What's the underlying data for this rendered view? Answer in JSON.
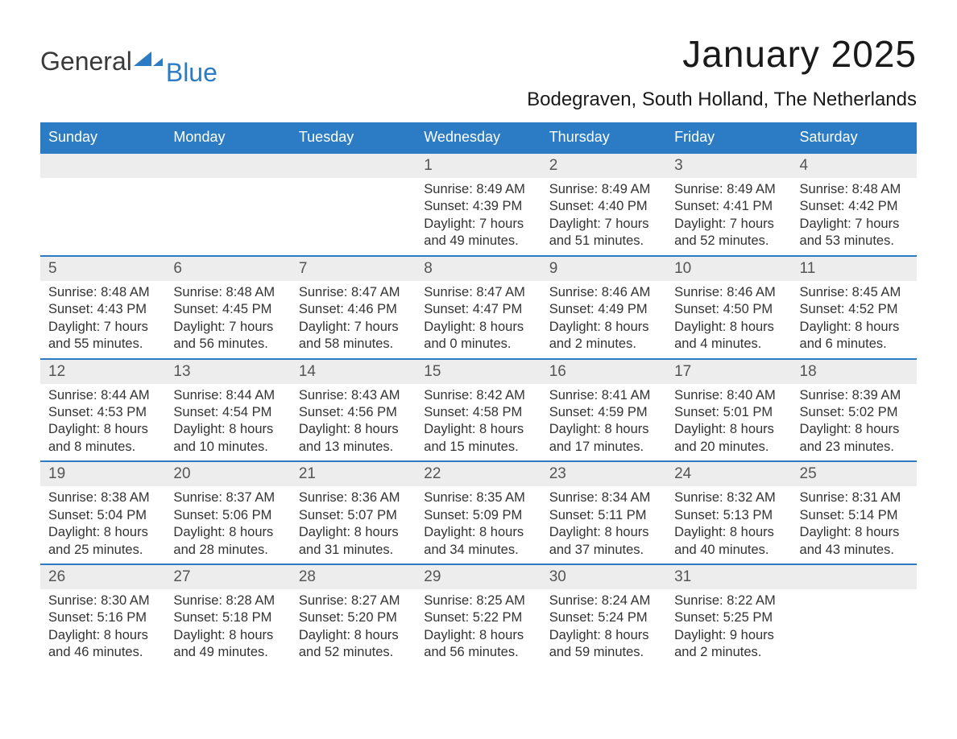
{
  "logo": {
    "text1": "General",
    "text2": "Blue",
    "shape_color": "#2b7cc4"
  },
  "title": "January 2025",
  "location": "Bodegraven, South Holland, The Netherlands",
  "colors": {
    "header_bg": "#2b7cc4",
    "header_text": "#ffffff",
    "daynum_bg": "#ededed",
    "daynum_border": "#2b7cc4",
    "body_text": "#333333",
    "page_bg": "#ffffff"
  },
  "fonts": {
    "title_size_pt": 34,
    "location_size_pt": 18,
    "dow_size_pt": 14,
    "daynum_size_pt": 14,
    "body_size_pt": 12
  },
  "days_of_week": [
    "Sunday",
    "Monday",
    "Tuesday",
    "Wednesday",
    "Thursday",
    "Friday",
    "Saturday"
  ],
  "weeks": [
    [
      {
        "num": "",
        "sunrise": "",
        "sunset": "",
        "daylight1": "",
        "daylight2": ""
      },
      {
        "num": "",
        "sunrise": "",
        "sunset": "",
        "daylight1": "",
        "daylight2": ""
      },
      {
        "num": "",
        "sunrise": "",
        "sunset": "",
        "daylight1": "",
        "daylight2": ""
      },
      {
        "num": "1",
        "sunrise": "Sunrise: 8:49 AM",
        "sunset": "Sunset: 4:39 PM",
        "daylight1": "Daylight: 7 hours",
        "daylight2": "and 49 minutes."
      },
      {
        "num": "2",
        "sunrise": "Sunrise: 8:49 AM",
        "sunset": "Sunset: 4:40 PM",
        "daylight1": "Daylight: 7 hours",
        "daylight2": "and 51 minutes."
      },
      {
        "num": "3",
        "sunrise": "Sunrise: 8:49 AM",
        "sunset": "Sunset: 4:41 PM",
        "daylight1": "Daylight: 7 hours",
        "daylight2": "and 52 minutes."
      },
      {
        "num": "4",
        "sunrise": "Sunrise: 8:48 AM",
        "sunset": "Sunset: 4:42 PM",
        "daylight1": "Daylight: 7 hours",
        "daylight2": "and 53 minutes."
      }
    ],
    [
      {
        "num": "5",
        "sunrise": "Sunrise: 8:48 AM",
        "sunset": "Sunset: 4:43 PM",
        "daylight1": "Daylight: 7 hours",
        "daylight2": "and 55 minutes."
      },
      {
        "num": "6",
        "sunrise": "Sunrise: 8:48 AM",
        "sunset": "Sunset: 4:45 PM",
        "daylight1": "Daylight: 7 hours",
        "daylight2": "and 56 minutes."
      },
      {
        "num": "7",
        "sunrise": "Sunrise: 8:47 AM",
        "sunset": "Sunset: 4:46 PM",
        "daylight1": "Daylight: 7 hours",
        "daylight2": "and 58 minutes."
      },
      {
        "num": "8",
        "sunrise": "Sunrise: 8:47 AM",
        "sunset": "Sunset: 4:47 PM",
        "daylight1": "Daylight: 8 hours",
        "daylight2": "and 0 minutes."
      },
      {
        "num": "9",
        "sunrise": "Sunrise: 8:46 AM",
        "sunset": "Sunset: 4:49 PM",
        "daylight1": "Daylight: 8 hours",
        "daylight2": "and 2 minutes."
      },
      {
        "num": "10",
        "sunrise": "Sunrise: 8:46 AM",
        "sunset": "Sunset: 4:50 PM",
        "daylight1": "Daylight: 8 hours",
        "daylight2": "and 4 minutes."
      },
      {
        "num": "11",
        "sunrise": "Sunrise: 8:45 AM",
        "sunset": "Sunset: 4:52 PM",
        "daylight1": "Daylight: 8 hours",
        "daylight2": "and 6 minutes."
      }
    ],
    [
      {
        "num": "12",
        "sunrise": "Sunrise: 8:44 AM",
        "sunset": "Sunset: 4:53 PM",
        "daylight1": "Daylight: 8 hours",
        "daylight2": "and 8 minutes."
      },
      {
        "num": "13",
        "sunrise": "Sunrise: 8:44 AM",
        "sunset": "Sunset: 4:54 PM",
        "daylight1": "Daylight: 8 hours",
        "daylight2": "and 10 minutes."
      },
      {
        "num": "14",
        "sunrise": "Sunrise: 8:43 AM",
        "sunset": "Sunset: 4:56 PM",
        "daylight1": "Daylight: 8 hours",
        "daylight2": "and 13 minutes."
      },
      {
        "num": "15",
        "sunrise": "Sunrise: 8:42 AM",
        "sunset": "Sunset: 4:58 PM",
        "daylight1": "Daylight: 8 hours",
        "daylight2": "and 15 minutes."
      },
      {
        "num": "16",
        "sunrise": "Sunrise: 8:41 AM",
        "sunset": "Sunset: 4:59 PM",
        "daylight1": "Daylight: 8 hours",
        "daylight2": "and 17 minutes."
      },
      {
        "num": "17",
        "sunrise": "Sunrise: 8:40 AM",
        "sunset": "Sunset: 5:01 PM",
        "daylight1": "Daylight: 8 hours",
        "daylight2": "and 20 minutes."
      },
      {
        "num": "18",
        "sunrise": "Sunrise: 8:39 AM",
        "sunset": "Sunset: 5:02 PM",
        "daylight1": "Daylight: 8 hours",
        "daylight2": "and 23 minutes."
      }
    ],
    [
      {
        "num": "19",
        "sunrise": "Sunrise: 8:38 AM",
        "sunset": "Sunset: 5:04 PM",
        "daylight1": "Daylight: 8 hours",
        "daylight2": "and 25 minutes."
      },
      {
        "num": "20",
        "sunrise": "Sunrise: 8:37 AM",
        "sunset": "Sunset: 5:06 PM",
        "daylight1": "Daylight: 8 hours",
        "daylight2": "and 28 minutes."
      },
      {
        "num": "21",
        "sunrise": "Sunrise: 8:36 AM",
        "sunset": "Sunset: 5:07 PM",
        "daylight1": "Daylight: 8 hours",
        "daylight2": "and 31 minutes."
      },
      {
        "num": "22",
        "sunrise": "Sunrise: 8:35 AM",
        "sunset": "Sunset: 5:09 PM",
        "daylight1": "Daylight: 8 hours",
        "daylight2": "and 34 minutes."
      },
      {
        "num": "23",
        "sunrise": "Sunrise: 8:34 AM",
        "sunset": "Sunset: 5:11 PM",
        "daylight1": "Daylight: 8 hours",
        "daylight2": "and 37 minutes."
      },
      {
        "num": "24",
        "sunrise": "Sunrise: 8:32 AM",
        "sunset": "Sunset: 5:13 PM",
        "daylight1": "Daylight: 8 hours",
        "daylight2": "and 40 minutes."
      },
      {
        "num": "25",
        "sunrise": "Sunrise: 8:31 AM",
        "sunset": "Sunset: 5:14 PM",
        "daylight1": "Daylight: 8 hours",
        "daylight2": "and 43 minutes."
      }
    ],
    [
      {
        "num": "26",
        "sunrise": "Sunrise: 8:30 AM",
        "sunset": "Sunset: 5:16 PM",
        "daylight1": "Daylight: 8 hours",
        "daylight2": "and 46 minutes."
      },
      {
        "num": "27",
        "sunrise": "Sunrise: 8:28 AM",
        "sunset": "Sunset: 5:18 PM",
        "daylight1": "Daylight: 8 hours",
        "daylight2": "and 49 minutes."
      },
      {
        "num": "28",
        "sunrise": "Sunrise: 8:27 AM",
        "sunset": "Sunset: 5:20 PM",
        "daylight1": "Daylight: 8 hours",
        "daylight2": "and 52 minutes."
      },
      {
        "num": "29",
        "sunrise": "Sunrise: 8:25 AM",
        "sunset": "Sunset: 5:22 PM",
        "daylight1": "Daylight: 8 hours",
        "daylight2": "and 56 minutes."
      },
      {
        "num": "30",
        "sunrise": "Sunrise: 8:24 AM",
        "sunset": "Sunset: 5:24 PM",
        "daylight1": "Daylight: 8 hours",
        "daylight2": "and 59 minutes."
      },
      {
        "num": "31",
        "sunrise": "Sunrise: 8:22 AM",
        "sunset": "Sunset: 5:25 PM",
        "daylight1": "Daylight: 9 hours",
        "daylight2": "and 2 minutes."
      },
      {
        "num": "",
        "sunrise": "",
        "sunset": "",
        "daylight1": "",
        "daylight2": ""
      }
    ]
  ]
}
